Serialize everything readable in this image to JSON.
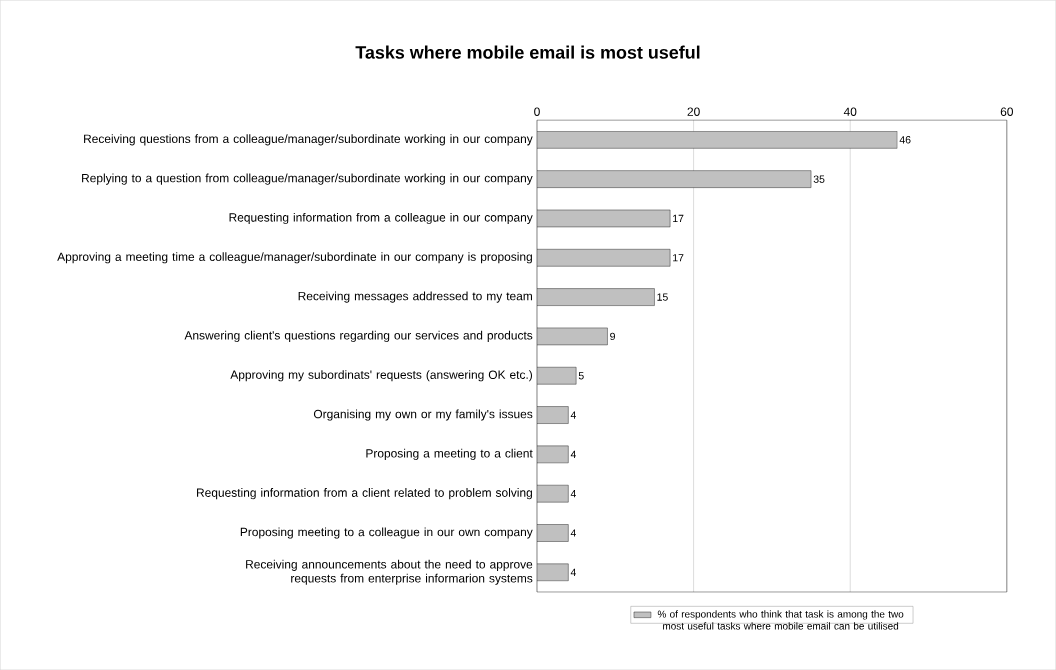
{
  "chart_data": {
    "type": "bar",
    "orientation": "horizontal",
    "title": "Tasks where  mobile email is most useful",
    "categories": [
      "Receiving questions from a colleague/manager/subordinate working in our company",
      "Replying to a question from colleague/manager/subordinate working in our company",
      "Requesting information from a colleague in our company",
      "Approving a meeting time a colleague/manager/subordinate in our company is proposing",
      "Receiving messages addressed to my team",
      "Answering client's questions regarding our services and products",
      "Approving my subordinats' requests (answering OK etc.)",
      "Organising my own or my family's issues",
      "Proposing a meeting to a client",
      "Requesting information from a client related to problem solving",
      "Proposing meeting to a colleague in our own company",
      "Receiving announcements about the need to approve requests from enterprise informarion systems"
    ],
    "series": [
      {
        "name": "% of respondents who think that task is among the two most useful tasks where mobile email can be utilised",
        "color": "#c0c0c0",
        "values": [
          46,
          35,
          17,
          17,
          15,
          9,
          5,
          4,
          4,
          4,
          4,
          4
        ]
      }
    ],
    "xlim": [
      0,
      60
    ],
    "xticks": [
      0,
      20,
      40,
      60
    ],
    "grid": "x",
    "legend": "bottom",
    "data_labels": true
  }
}
